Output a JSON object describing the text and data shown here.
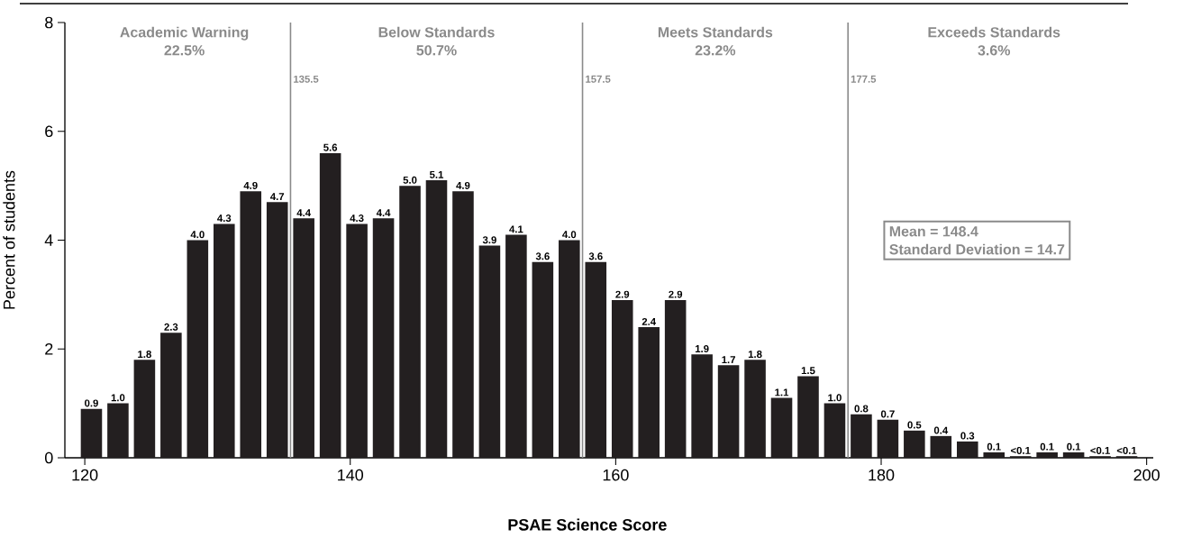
{
  "chart_data": {
    "type": "histogram",
    "xlabel": "PSAE Science Score",
    "ylabel": "Percent of students",
    "bins": [
      119.5,
      121.5,
      123.5,
      125.5,
      127.5,
      129.5,
      131.5,
      133.5,
      135.5,
      137.5,
      139.5,
      141.5,
      143.5,
      145.5,
      147.5,
      149.5,
      151.5,
      153.5,
      155.5,
      157.5,
      159.5,
      161.5,
      163.5,
      165.5,
      167.5,
      169.5,
      171.5,
      173.5,
      175.5,
      177.5,
      179.5,
      181.5,
      183.5,
      185.5,
      187.5,
      189.5,
      191.5,
      193.5,
      195.5,
      197.5,
      199.5
    ],
    "values": [
      0.9,
      1.0,
      1.8,
      2.3,
      4.0,
      4.3,
      4.9,
      4.7,
      4.4,
      5.6,
      4.3,
      4.4,
      5.0,
      5.1,
      4.9,
      3.9,
      4.1,
      3.6,
      4.0,
      3.6,
      2.9,
      2.4,
      2.9,
      1.9,
      1.7,
      1.8,
      1.1,
      1.5,
      1.0,
      0.8,
      0.7,
      0.5,
      0.4,
      0.3,
      0.1,
      0.03,
      0.1,
      0.1,
      0.03,
      0.03
    ],
    "value_labels": [
      "0.9",
      "1.0",
      "1.8",
      "2.3",
      "4.0",
      "4.3",
      "4.9",
      "4.7",
      "4.4",
      "5.6",
      "4.3",
      "4.4",
      "5.0",
      "5.1",
      "4.9",
      "3.9",
      "4.1",
      "3.6",
      "4.0",
      "3.6",
      "2.9",
      "2.4",
      "2.9",
      "1.9",
      "1.7",
      "1.8",
      "1.1",
      "1.5",
      "1.0",
      "0.8",
      "0.7",
      "0.5",
      "0.4",
      "0.3",
      "0.1",
      "<0.1",
      "0.1",
      "0.1",
      "<0.1",
      "<0.1"
    ],
    "color": "#231f20",
    "xlim": [
      118.5,
      200.5
    ],
    "xticks": [
      120,
      140,
      160,
      180,
      200
    ],
    "ylim": [
      0,
      8
    ],
    "yticks": [
      0,
      2,
      4,
      6,
      8
    ],
    "ref_lines": [
      {
        "axis": "x",
        "value": 135.5,
        "label": "135.5",
        "color": "#8a8a8a"
      },
      {
        "axis": "x",
        "value": 157.5,
        "label": "157.5",
        "color": "#8a8a8a"
      },
      {
        "axis": "x",
        "value": 177.5,
        "label": "177.5",
        "color": "#8a8a8a"
      }
    ],
    "annotations": [
      "Academic Warning",
      "22.5%",
      "Below Standards",
      "50.7%",
      "Meets Standards",
      "23.2%",
      "Exceeds Standards",
      "3.6%",
      "Mean = 148.4",
      "Standard Deviation = 14.7"
    ],
    "grid": false
  }
}
